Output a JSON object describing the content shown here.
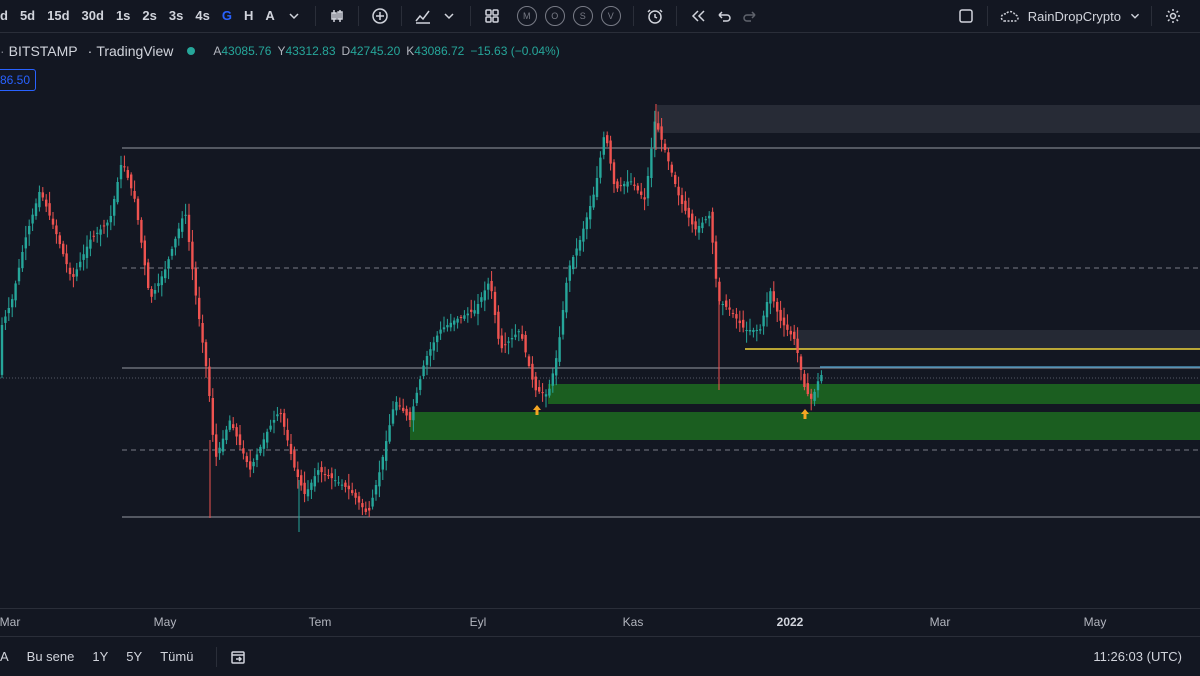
{
  "toolbar": {
    "timeframes": [
      "d",
      "5d",
      "15d",
      "30d",
      "1s",
      "2s",
      "3s",
      "4s",
      "G",
      "H",
      "A"
    ],
    "active_timeframe": "G",
    "circle_buttons": [
      "M",
      "O",
      "S",
      "V"
    ],
    "user_name": "RainDropCrypto",
    "icons": [
      "chevron-down-icon",
      "candles-icon",
      "add-indicator-icon",
      "indicators-icon",
      "chevron-down-icon",
      "layout-icon",
      "alert-icon",
      "replay-icon",
      "undo-icon",
      "redo-icon",
      "fullscreen-icon",
      "cloud-icon",
      "settings-icon"
    ]
  },
  "legend": {
    "symbol": "BITSTAMP",
    "separator": "·",
    "source": "TradingView",
    "open_label": "A",
    "open": "43085.76",
    "high_label": "Y",
    "high": "43312.83",
    "low_label": "D",
    "low": "42745.20",
    "close_label": "K",
    "close": "43086.72",
    "change": "−15.63 (−0.04%)"
  },
  "price_box": "86.50",
  "xaxis": {
    "labels": [
      "Mar",
      "May",
      "Tem",
      "Eyl",
      "Kas",
      "2022",
      "Mar",
      "May"
    ],
    "bold_label": "2022"
  },
  "bottombar": {
    "ranges": [
      "A",
      "Bu sene",
      "1Y",
      "5Y",
      "Tümü"
    ],
    "clock": "11:26:03 (UTC)"
  },
  "colors": {
    "background": "#131722",
    "up": "#26a69a",
    "down": "#ef5350",
    "zone_green": "#1b5e20",
    "zone_gray": "#2a2e39",
    "yellow_line": "#f0d43a",
    "blue_line": "#4a90b8",
    "arrow": "#f5a623"
  }
}
